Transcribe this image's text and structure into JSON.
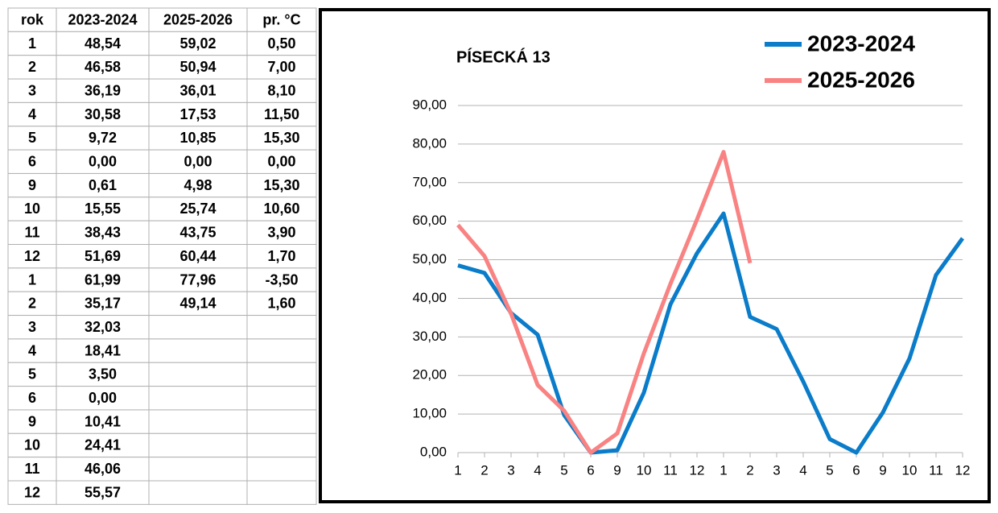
{
  "table": {
    "header": [
      "rok",
      "2023-2024",
      "2025-2026",
      "pr. °C"
    ],
    "rows": [
      [
        "1",
        "48,54",
        "59,02",
        "0,50"
      ],
      [
        "2",
        "46,58",
        "50,94",
        "7,00"
      ],
      [
        "3",
        "36,19",
        "36,01",
        "8,10"
      ],
      [
        "4",
        "30,58",
        "17,53",
        "11,50"
      ],
      [
        "5",
        "9,72",
        "10,85",
        "15,30"
      ],
      [
        "6",
        "0,00",
        "0,00",
        "0,00"
      ],
      [
        "9",
        "0,61",
        "4,98",
        "15,30"
      ],
      [
        "10",
        "15,55",
        "25,74",
        "10,60"
      ],
      [
        "11",
        "38,43",
        "43,75",
        "3,90"
      ],
      [
        "12",
        "51,69",
        "60,44",
        "1,70"
      ],
      [
        "1",
        "61,99",
        "77,96",
        "-3,50"
      ],
      [
        "2",
        "35,17",
        "49,14",
        "1,60"
      ],
      [
        "3",
        "32,03"
      ],
      [
        "4",
        "18,41"
      ],
      [
        "5",
        "3,50"
      ],
      [
        "6",
        "0,00"
      ],
      [
        "9",
        "10,41"
      ],
      [
        "10",
        "24,41"
      ],
      [
        "11",
        "46,06"
      ],
      [
        "12",
        "55,57"
      ]
    ]
  },
  "chart_data": {
    "type": "line",
    "title": "PÍSECKÁ 13",
    "categories": [
      "1",
      "2",
      "3",
      "4",
      "5",
      "6",
      "9",
      "10",
      "11",
      "12",
      "1",
      "2",
      "3",
      "4",
      "5",
      "6",
      "9",
      "10",
      "11",
      "12"
    ],
    "series": [
      {
        "name": "2023-2024",
        "color": "#0a7cc9",
        "values": [
          48.54,
          46.58,
          36.19,
          30.58,
          9.72,
          0,
          0.61,
          15.55,
          38.43,
          51.69,
          61.99,
          35.17,
          32.03,
          18.41,
          3.5,
          0,
          10.41,
          24.41,
          46.06,
          55.57
        ]
      },
      {
        "name": "2025-2026",
        "color": "#f98282",
        "values": [
          59.02,
          50.94,
          36.01,
          17.53,
          10.85,
          0,
          4.98,
          25.74,
          43.75,
          60.44,
          77.96,
          49.14,
          null,
          null,
          null,
          null,
          null,
          null,
          null,
          null
        ]
      }
    ],
    "ylim": [
      0,
      90
    ],
    "yticks": [
      {
        "value": 0,
        "label": "0,00"
      },
      {
        "value": 10,
        "label": "10,00"
      },
      {
        "value": 20,
        "label": "20,00"
      },
      {
        "value": 30,
        "label": "30,00"
      },
      {
        "value": 40,
        "label": "40,00"
      },
      {
        "value": 50,
        "label": "50,00"
      },
      {
        "value": 60,
        "label": "60,00"
      },
      {
        "value": 70,
        "label": "70,00"
      },
      {
        "value": 80,
        "label": "80,00"
      },
      {
        "value": 90,
        "label": "90,00"
      }
    ],
    "grid": true,
    "legend": "top-right"
  }
}
